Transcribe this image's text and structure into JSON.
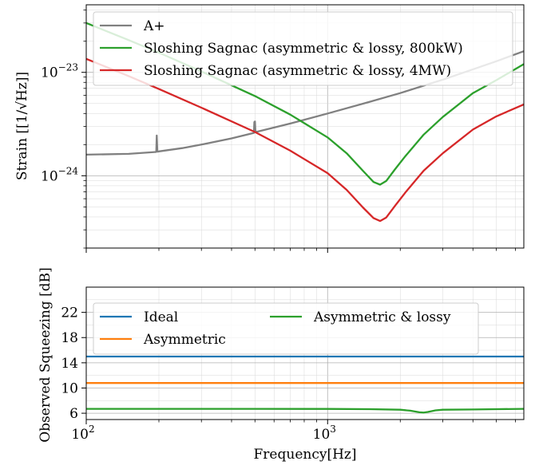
{
  "chart_data": [
    {
      "type": "line",
      "title": "",
      "xlabel": "",
      "ylabel": "Strain [[1/√Hz]]",
      "xscale": "log",
      "yscale": "log",
      "xlim": [
        100,
        6500
      ],
      "ylim": [
        2e-25,
        4.5e-23
      ],
      "grid": true,
      "legend": "top-left",
      "ytick_labels": [
        {
          "value": 1e-23,
          "base": "10",
          "exp": "−23"
        },
        {
          "value": 1e-24,
          "base": "10",
          "exp": "−24"
        }
      ],
      "series": [
        {
          "name": "A+",
          "color": "#808080",
          "x": [
            100,
            150,
            195,
            196,
            197,
            198,
            200,
            250,
            300,
            400,
            495,
            497,
            500,
            502,
            505,
            700,
            1000,
            1500,
            2000,
            3000,
            4000,
            5000,
            6500
          ],
          "y": [
            1.6e-24,
            1.63e-24,
            1.7e-24,
            2.45e-24,
            1.75e-24,
            1.71e-24,
            1.72e-24,
            1.85e-24,
            2e-24,
            2.3e-24,
            2.6e-24,
            3.3e-24,
            3.35e-24,
            2.75e-24,
            2.65e-24,
            3.2e-24,
            4e-24,
            5.2e-24,
            6.3e-24,
            8.5e-24,
            1.07e-23,
            1.28e-23,
            1.6e-23
          ]
        },
        {
          "name": "Sloshing Sagnac (asymmetric & lossy, 800kW)",
          "color": "#2ca02c",
          "x": [
            100,
            150,
            200,
            300,
            500,
            700,
            1000,
            1200,
            1400,
            1550,
            1650,
            1750,
            1900,
            2100,
            2500,
            3000,
            4000,
            5000,
            6500
          ],
          "y": [
            3e-23,
            2.05e-23,
            1.55e-23,
            1.02e-23,
            5.9e-24,
            3.9e-24,
            2.35e-24,
            1.65e-24,
            1.12e-24,
            8.7e-25,
            8.2e-25,
            8.9e-25,
            1.15e-24,
            1.55e-24,
            2.5e-24,
            3.7e-24,
            6.3e-24,
            8.4e-24,
            1.2e-23
          ]
        },
        {
          "name": "Sloshing Sagnac (asymmetric & lossy, 4MW)",
          "color": "#d62728",
          "x": [
            100,
            150,
            200,
            300,
            500,
            700,
            1000,
            1200,
            1400,
            1550,
            1650,
            1750,
            1900,
            2100,
            2500,
            3000,
            4000,
            5000,
            6500
          ],
          "y": [
            1.35e-23,
            9.2e-24,
            6.9e-24,
            4.55e-24,
            2.65e-24,
            1.75e-24,
            1.06e-24,
            7.3e-25,
            4.95e-25,
            3.9e-25,
            3.65e-25,
            3.95e-25,
            5.1e-25,
            6.9e-25,
            1.12e-24,
            1.65e-24,
            2.8e-24,
            3.75e-24,
            4.9e-24
          ]
        }
      ]
    },
    {
      "type": "line",
      "title": "",
      "xlabel": "Frequency[Hz]",
      "ylabel": "Observed Squeezing [dB]",
      "xscale": "log",
      "xlim": [
        100,
        6500
      ],
      "ylim": [
        5,
        26
      ],
      "yticks": [
        6,
        10,
        14,
        18,
        22
      ],
      "xtick_labels": [
        {
          "value": 100,
          "base": "10",
          "exp": "2"
        },
        {
          "value": 1000,
          "base": "10",
          "exp": "3"
        }
      ],
      "grid": true,
      "legend": "top-left",
      "series": [
        {
          "name": "Ideal",
          "color": "#1f77b4",
          "x": [
            100,
            6500
          ],
          "y": [
            15.0,
            15.0
          ]
        },
        {
          "name": "Asymmetric",
          "color": "#ff7f0e",
          "x": [
            100,
            6500
          ],
          "y": [
            10.8,
            10.8
          ]
        },
        {
          "name": "Asymmetric & lossy",
          "color": "#2ca02c",
          "x": [
            100,
            500,
            1000,
            1500,
            2000,
            2200,
            2400,
            2500,
            2600,
            2800,
            3000,
            4000,
            5000,
            6500
          ],
          "y": [
            6.7,
            6.7,
            6.68,
            6.65,
            6.55,
            6.4,
            6.15,
            6.1,
            6.2,
            6.45,
            6.55,
            6.6,
            6.65,
            6.7
          ]
        }
      ]
    }
  ]
}
